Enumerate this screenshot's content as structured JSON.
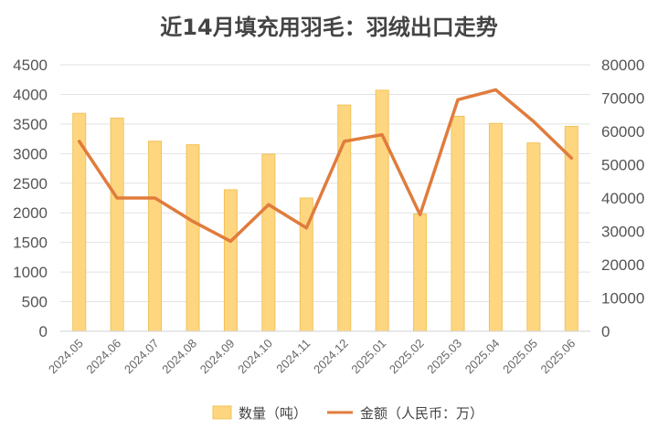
{
  "chart_data": {
    "type": "bar+line",
    "title": "近14月填充用羽毛：羽绒出口走势",
    "categories": [
      "2024.05",
      "2024.06",
      "2024.07",
      "2024.08",
      "2024.09",
      "2024.10",
      "2024.11",
      "2024.12",
      "2025.01",
      "2025.02",
      "2025.03",
      "2025.04",
      "2025.05",
      "2025.06"
    ],
    "series": [
      {
        "name": "数量（吨）",
        "type": "bar",
        "axis": "left",
        "color": "#FFD680",
        "values": [
          3680,
          3600,
          3210,
          3150,
          2390,
          2990,
          2250,
          3820,
          4070,
          1980,
          3630,
          3510,
          3180,
          3460
        ]
      },
      {
        "name": "金额（人民币：万）",
        "type": "line",
        "axis": "right",
        "color": "#E07C3C",
        "values": [
          57000,
          40000,
          40000,
          33000,
          27000,
          38000,
          31000,
          57000,
          59000,
          35000,
          69500,
          72500,
          63000,
          52000
        ]
      }
    ],
    "y_left": {
      "min": 0,
      "max": 4500,
      "ticks": [
        0,
        500,
        1000,
        1500,
        2000,
        2500,
        3000,
        3500,
        4000,
        4500
      ]
    },
    "y_right": {
      "min": 0,
      "max": 80000,
      "ticks": [
        0,
        10000,
        20000,
        30000,
        40000,
        50000,
        60000,
        70000,
        80000
      ]
    },
    "grid": true,
    "legend_position": "bottom"
  }
}
